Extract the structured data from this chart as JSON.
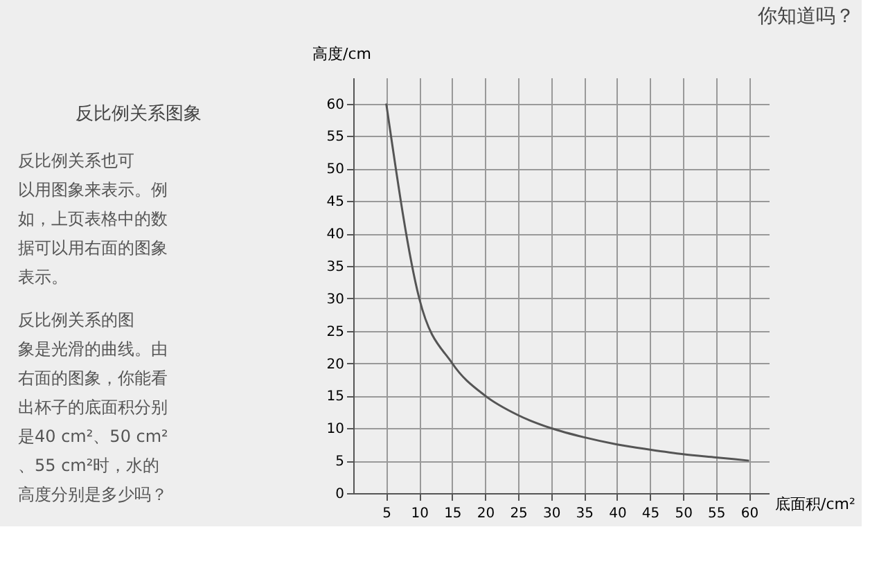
{
  "chart_data": {
    "type": "line",
    "title": "你知道吗？",
    "subtitle": "反比例关系图象",
    "annotations": [
      "反比例关系也可以用图象来表示。例如，上页表格中的数据可以用右面的图象表示。",
      "反比例关系的图象是光滑的曲线。由右面的图象，你能看出杯子的底面积分别是40 cm²、50 cm²、55 cm²时，水的高度分别是多少吗？"
    ],
    "xlabel": "底面积/cm²",
    "ylabel": "高度/cm",
    "x": [
      5,
      10,
      15,
      20,
      25,
      30,
      35,
      40,
      45,
      50,
      55,
      60
    ],
    "series": [
      {
        "color": "#555555",
        "values": [
          60,
          30,
          20,
          15,
          12,
          10,
          8.6,
          7.5,
          6.7,
          6,
          5.5,
          5
        ]
      }
    ],
    "xlim": [
      0,
      63
    ],
    "ylim": [
      0,
      64
    ],
    "xticks": [
      5,
      10,
      15,
      20,
      25,
      30,
      35,
      40,
      45,
      50,
      55,
      60
    ],
    "yticks": [
      0,
      5,
      10,
      15,
      20,
      25,
      30,
      35,
      40,
      45,
      50,
      55,
      60
    ],
    "grid": true,
    "legend": false,
    "marker": "none",
    "line_style": "solid"
  }
}
